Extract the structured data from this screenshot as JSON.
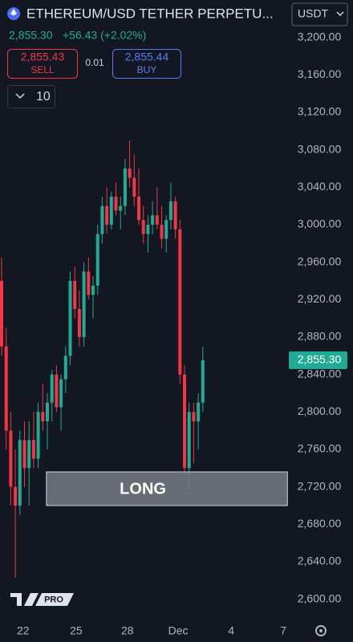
{
  "header": {
    "symbol": "ETHEREUM/USD TETHER PERPETU...",
    "currency": "USDT",
    "price": "2,855.30",
    "change": "+56.43 (+2.02%)",
    "sell_price": "2,855.43",
    "sell": "SELL",
    "spread": "0.01",
    "buy_price": "2,855.44",
    "buy": "BUY",
    "quantity": "10",
    "logo": "PRO"
  },
  "chart_data": {
    "type": "candlestick",
    "up_color": "#22ab94",
    "down_color": "#f23645",
    "open": [
      2940,
      2870,
      2780,
      2720,
      2700,
      2770,
      2740,
      2770,
      2750,
      2800,
      2790,
      2810,
      2840,
      2805,
      2835,
      2860,
      2940,
      2910,
      2880,
      2950,
      2925,
      2935,
      2990,
      3020,
      3000,
      3030,
      3015,
      3020,
      3060,
      3050,
      3030,
      3005,
      2990,
      3000,
      3010,
      3000,
      2985,
      3005,
      3025,
      2995,
      2840,
      2740,
      2800,
      2790,
      2810
    ],
    "high": [
      2965,
      2890,
      2800,
      2760,
      2780,
      2790,
      2790,
      2800,
      2810,
      2830,
      2820,
      2845,
      2850,
      2840,
      2870,
      2950,
      2955,
      2930,
      2960,
      2965,
      2945,
      3000,
      3030,
      3040,
      3035,
      3045,
      3030,
      3070,
      3090,
      3075,
      3060,
      3020,
      3010,
      3025,
      3040,
      3020,
      3010,
      3045,
      3030,
      3005,
      2850,
      2810,
      2810,
      2820,
      2870
    ],
    "low": [
      2860,
      2760,
      2700,
      2623,
      2690,
      2720,
      2700,
      2740,
      2740,
      2780,
      2760,
      2790,
      2800,
      2780,
      2820,
      2850,
      2900,
      2870,
      2870,
      2920,
      2900,
      2925,
      2980,
      2990,
      2995,
      3010,
      2995,
      3010,
      3040,
      3020,
      3000,
      2980,
      2970,
      2990,
      2995,
      2975,
      2970,
      2995,
      2985,
      2830,
      2730,
      2717,
      2745,
      2760,
      2800
    ],
    "close": [
      2870,
      2780,
      2720,
      2700,
      2770,
      2740,
      2770,
      2750,
      2800,
      2790,
      2810,
      2840,
      2805,
      2835,
      2860,
      2940,
      2910,
      2880,
      2950,
      2925,
      2935,
      2990,
      3020,
      3000,
      3030,
      3015,
      3020,
      3060,
      3050,
      3030,
      3005,
      2990,
      3000,
      3010,
      3000,
      2985,
      3005,
      3025,
      2995,
      2840,
      2740,
      2800,
      2790,
      2810,
      2855.3
    ],
    "ylim": [
      2580,
      3240
    ],
    "yticks": [
      {
        "value": 3200,
        "label": "3,200.00"
      },
      {
        "value": 3160,
        "label": "3,160.00"
      },
      {
        "value": 3120,
        "label": "3,120.00"
      },
      {
        "value": 3080,
        "label": "3,080.00"
      },
      {
        "value": 3040,
        "label": "3,040.00"
      },
      {
        "value": 3000,
        "label": "3,000.00"
      },
      {
        "value": 2960,
        "label": "2,960.00"
      },
      {
        "value": 2920,
        "label": "2,920.00"
      },
      {
        "value": 2880,
        "label": "2,880.00"
      },
      {
        "value": 2840,
        "label": "2,840.00"
      },
      {
        "value": 2800,
        "label": "2,800.00"
      },
      {
        "value": 2760,
        "label": "2,760.00"
      },
      {
        "value": 2720,
        "label": "2,720.00"
      },
      {
        "value": 2680,
        "label": "2,680.00"
      },
      {
        "value": 2640,
        "label": "2,640.00"
      },
      {
        "value": 2600,
        "label": "2,600.00"
      }
    ],
    "xlim": [
      -0.35,
      62.8
    ],
    "xticks": [
      {
        "value": 4.7,
        "label": "22"
      },
      {
        "value": 16.3,
        "label": "25"
      },
      {
        "value": 27.5,
        "label": "28"
      },
      {
        "value": 38.6,
        "label": "Dec"
      },
      {
        "value": 50.2,
        "label": "4"
      },
      {
        "value": 61.6,
        "label": "7"
      }
    ],
    "last_price": {
      "value": 2855.3,
      "label": "2,855.30"
    },
    "annotation": {
      "text": "LONG",
      "top": 2736,
      "bottom": 2700,
      "x": [
        9.8,
        62.5
      ]
    }
  }
}
